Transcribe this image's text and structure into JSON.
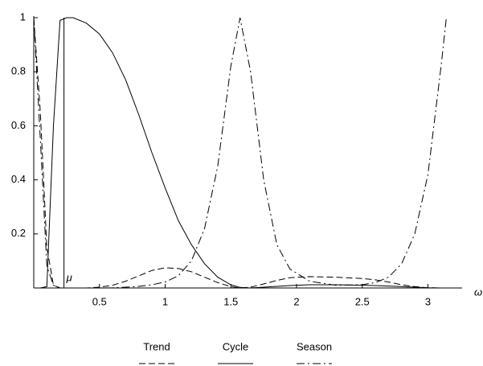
{
  "chart_data": {
    "type": "line",
    "x_label": "ω",
    "x": [
      0,
      0.05,
      0.1,
      0.15,
      0.2,
      0.25,
      0.3,
      0.4,
      0.5,
      0.6,
      0.7,
      0.8,
      0.9,
      1.0,
      1.1,
      1.2,
      1.3,
      1.4,
      1.5,
      1.57,
      1.65,
      1.75,
      1.85,
      1.95,
      2.1,
      2.3,
      2.5,
      2.6,
      2.7,
      2.8,
      2.9,
      3.0,
      3.1,
      3.14
    ],
    "series": [
      {
        "name": "Trend",
        "color": "#000000",
        "dash": "8,4",
        "values": [
          1,
          0.65,
          0.15,
          0.01,
          0,
          0,
          0,
          0,
          0.003,
          0.01,
          0.025,
          0.045,
          0.065,
          0.075,
          0.072,
          0.06,
          0.04,
          0.02,
          0.005,
          0,
          0.003,
          0.015,
          0.028,
          0.038,
          0.042,
          0.04,
          0.035,
          0.03,
          0.022,
          0.012,
          0.005,
          0.001,
          0,
          0
        ]
      },
      {
        "name": "Cycle",
        "color": "#000000",
        "dash": "none",
        "values": [
          0,
          0,
          0.005,
          0.6,
          0.99,
          1,
          1,
          0.98,
          0.94,
          0.87,
          0.77,
          0.64,
          0.5,
          0.37,
          0.25,
          0.16,
          0.09,
          0.04,
          0.012,
          0.002,
          0,
          0.003,
          0.006,
          0.009,
          0.012,
          0.012,
          0.01,
          0.009,
          0.007,
          0.005,
          0.003,
          0.001,
          0,
          0
        ]
      },
      {
        "name": "Season",
        "color": "#000000",
        "dash": "10,4,2,4",
        "values": [
          1,
          0.55,
          0.08,
          0.01,
          0,
          0,
          0,
          0,
          0,
          0.001,
          0.003,
          0.006,
          0.012,
          0.022,
          0.045,
          0.1,
          0.22,
          0.45,
          0.82,
          1,
          0.8,
          0.4,
          0.16,
          0.07,
          0.025,
          0.01,
          0.012,
          0.02,
          0.04,
          0.09,
          0.2,
          0.42,
          0.82,
          1
        ]
      }
    ],
    "marker": {
      "x": 0.23,
      "label": "μ"
    },
    "xlim": [
      0,
      3.26
    ],
    "ylim": [
      0,
      1
    ],
    "xticks": [
      0.5,
      1,
      1.5,
      2,
      2.5,
      3
    ],
    "yticks": [
      0.2,
      0.4,
      0.6,
      0.8,
      1
    ],
    "legend": "bottom"
  }
}
